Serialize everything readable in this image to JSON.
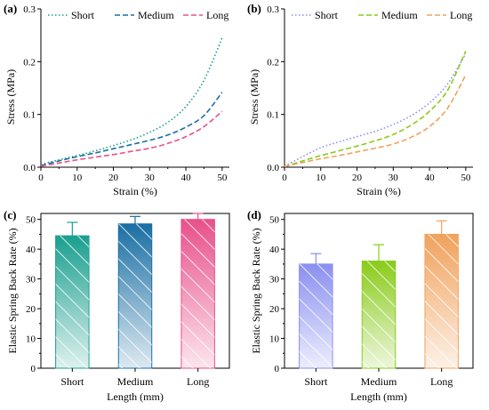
{
  "chart_data": [
    {
      "panel": "(a)",
      "type": "line",
      "xlabel": "Strain (%)",
      "ylabel": "Stress (MPa)",
      "xlim": [
        0,
        52
      ],
      "ylim": [
        0,
        0.3
      ],
      "xticks": [
        0,
        10,
        20,
        30,
        40,
        50
      ],
      "yticks": [
        0.0,
        0.1,
        0.2,
        0.3
      ],
      "ytick_labels": [
        "0.0",
        "0.1",
        "0.2",
        "0.3"
      ],
      "legend": "top",
      "x": [
        0,
        5,
        10,
        15,
        20,
        25,
        30,
        35,
        40,
        45,
        50
      ],
      "series": [
        {
          "name": "Short",
          "style": "dotted",
          "color": "#1a9f8f",
          "values": [
            0.005,
            0.014,
            0.022,
            0.031,
            0.041,
            0.052,
            0.066,
            0.085,
            0.115,
            0.165,
            0.245
          ]
        },
        {
          "name": "Medium",
          "style": "dashed",
          "color": "#1a6fa3",
          "values": [
            0.003,
            0.012,
            0.02,
            0.027,
            0.035,
            0.043,
            0.051,
            0.061,
            0.076,
            0.098,
            0.142
          ]
        },
        {
          "name": "Long",
          "style": "dashed",
          "color": "#e8508a",
          "values": [
            0.002,
            0.008,
            0.014,
            0.019,
            0.024,
            0.03,
            0.036,
            0.045,
            0.058,
            0.077,
            0.106
          ]
        }
      ]
    },
    {
      "panel": "(b)",
      "type": "line",
      "xlabel": "Strain (%)",
      "ylabel": "Stress (MPa)",
      "xlim": [
        0,
        52
      ],
      "ylim": [
        0,
        0.3
      ],
      "xticks": [
        0,
        10,
        20,
        30,
        40,
        50
      ],
      "yticks": [
        0.0,
        0.1,
        0.2,
        0.3
      ],
      "ytick_labels": [
        "0.0",
        "0.1",
        "0.2",
        "0.3"
      ],
      "legend": "top",
      "x": [
        0,
        5,
        10,
        15,
        20,
        25,
        30,
        35,
        40,
        45,
        50
      ],
      "series": [
        {
          "name": "Short",
          "style": "dotted",
          "color": "#8a8ff0",
          "values": [
            0.002,
            0.02,
            0.037,
            0.048,
            0.058,
            0.068,
            0.081,
            0.098,
            0.122,
            0.158,
            0.215
          ]
        },
        {
          "name": "Medium",
          "style": "dashed",
          "color": "#8acb1a",
          "values": [
            0.001,
            0.012,
            0.022,
            0.031,
            0.04,
            0.05,
            0.062,
            0.08,
            0.106,
            0.146,
            0.22
          ]
        },
        {
          "name": "Long",
          "style": "dashed",
          "color": "#f0a25c",
          "values": [
            0.001,
            0.009,
            0.016,
            0.022,
            0.029,
            0.036,
            0.044,
            0.057,
            0.077,
            0.112,
            0.175
          ]
        }
      ]
    },
    {
      "panel": "(c)",
      "type": "bar",
      "xlabel": "Length (mm)",
      "ylabel": "Elastic Spring Back Rate (%)",
      "categories": [
        "Short",
        "Medium",
        "Long"
      ],
      "values": [
        44.5,
        48.5,
        50.0
      ],
      "errors": [
        4.5,
        2.5,
        2.0
      ],
      "colors": [
        "#1a9f8f",
        "#1a6fa3",
        "#e8508a"
      ],
      "ylim": [
        0,
        52
      ],
      "yticks": [
        0,
        10,
        20,
        30,
        40,
        50
      ]
    },
    {
      "panel": "(d)",
      "type": "bar",
      "xlabel": "Length (mm)",
      "ylabel": "Elastic Spring Back Rate (%)",
      "categories": [
        "Short",
        "Medium",
        "Long"
      ],
      "values": [
        35.0,
        36.0,
        45.0
      ],
      "errors": [
        3.5,
        5.5,
        4.5
      ],
      "colors": [
        "#8a8ff0",
        "#8acb1a",
        "#f0a25c"
      ],
      "ylim": [
        0,
        52
      ],
      "yticks": [
        0,
        10,
        20,
        30,
        40,
        50
      ]
    }
  ]
}
